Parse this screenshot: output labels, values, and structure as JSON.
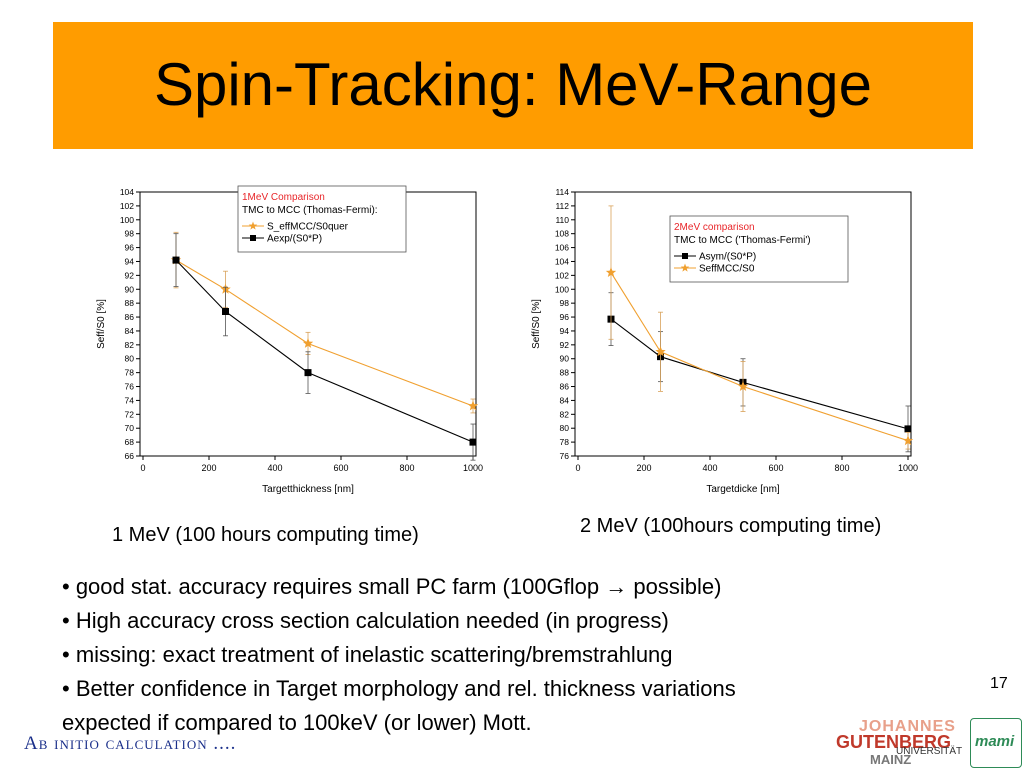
{
  "slide": {
    "title": "Spin-Tracking: MeV-Range",
    "page_number": "17",
    "footer": "Ab initio calculation ....",
    "logo_text": [
      "JOHANNES",
      "GUTENBERG",
      "UNIVERSITÄT",
      "MAINZ"
    ],
    "logo2_text": "mami"
  },
  "captions": {
    "left": "1 MeV (100 hours computing time)",
    "right": "2 MeV (100hours computing time)"
  },
  "bullets": [
    "• good stat. accuracy requires small PC farm (100Gflop → possible)",
    "• High accuracy cross section calculation needed (in progress)",
    "• missing: exact treatment of inelastic scattering/bremstrahlung",
    "• Better confidence in Target morphology and rel. thickness variations",
    "expected if compared to 100keV (or lower) Mott."
  ],
  "colors": {
    "title_bg": "#ff9c00",
    "orange_series": "#f0a030",
    "black_series": "#000000",
    "legend_title_red": "#e8262a"
  },
  "chart_data": [
    {
      "type": "line",
      "xlabel": "Targetthickness [nm]",
      "ylabel": "Seff/S0 [%]",
      "xlim": [
        0,
        1000
      ],
      "ylim": [
        66,
        104
      ],
      "x_ticks": [
        "0",
        "200",
        "400",
        "600",
        "800",
        "1000"
      ],
      "y_ticks": [
        "66",
        "68",
        "70",
        "72",
        "74",
        "76",
        "78",
        "80",
        "82",
        "84",
        "86",
        "88",
        "90",
        "92",
        "94",
        "96",
        "98",
        "100",
        "102",
        "104"
      ],
      "legend": {
        "title": "1MeV Comparison",
        "subtitle": "TMC to MCC (Thomas-Fermi):",
        "placement": "top-right"
      },
      "series": [
        {
          "name": "S_effMCC/S0quer",
          "marker": "star",
          "color": "#f0a030",
          "x": [
            100,
            250,
            500,
            1000
          ],
          "y": [
            94.2,
            90.0,
            82.2,
            73.2
          ],
          "err": [
            4.0,
            2.6,
            1.6,
            1.0
          ]
        },
        {
          "name": "Aexp/(S0*P)",
          "marker": "square",
          "color": "#000000",
          "x": [
            100,
            250,
            500,
            1000
          ],
          "y": [
            94.2,
            86.8,
            78.0,
            68.0
          ],
          "err": [
            3.8,
            3.5,
            3.0,
            2.6
          ]
        }
      ]
    },
    {
      "type": "line",
      "xlabel": "Targetdicke [nm]",
      "ylabel": "Seff/S0 [%]",
      "xlim": [
        0,
        1000
      ],
      "ylim": [
        76,
        114
      ],
      "x_ticks": [
        "0",
        "200",
        "400",
        "600",
        "800",
        "1000"
      ],
      "y_ticks": [
        "76",
        "78",
        "80",
        "82",
        "84",
        "86",
        "88",
        "90",
        "92",
        "94",
        "96",
        "98",
        "100",
        "102",
        "104",
        "106",
        "108",
        "110",
        "112",
        "114"
      ],
      "legend": {
        "title": "2MeV comparison",
        "subtitle": "TMC to  MCC ('Thomas-Fermi')",
        "placement": "top-right"
      },
      "series": [
        {
          "name": "Asym/(S0*P)",
          "marker": "square",
          "color": "#000000",
          "x": [
            100,
            250,
            500,
            1000
          ],
          "y": [
            95.7,
            90.3,
            86.6,
            79.9
          ],
          "err": [
            3.8,
            3.6,
            3.4,
            3.3
          ]
        },
        {
          "name": "SeffMCC/S0",
          "marker": "star",
          "color": "#f0a030",
          "x": [
            100,
            250,
            500,
            1000
          ],
          "y": [
            102.4,
            91.0,
            86.0,
            78.2
          ],
          "err": [
            9.6,
            5.7,
            3.6,
            1.2
          ]
        }
      ]
    }
  ]
}
